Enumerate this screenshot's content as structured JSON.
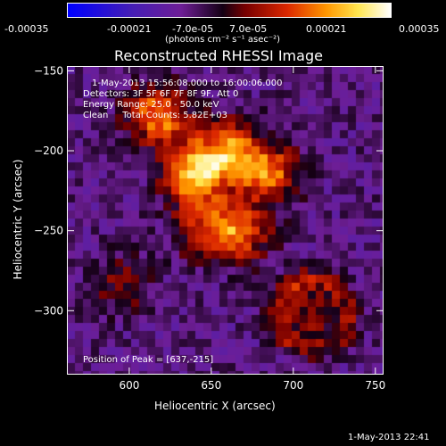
{
  "colorbar": {
    "ticks": [
      "-0.00035",
      "-0.00021",
      "-7.0e-05",
      "7.0e-05",
      "0.00021",
      "0.00035"
    ],
    "unit_label": "(photons cm⁻² s⁻¹ asec⁻²)"
  },
  "chart_data": {
    "type": "heatmap",
    "title": "Reconstructed RHESSI Image",
    "xlabel": "Heliocentric X (arcsec)",
    "ylabel": "Heliocentric Y (arcsec)",
    "xlim": [
      562,
      755
    ],
    "ylim": [
      -340,
      -147
    ],
    "x_ticks": [
      600,
      650,
      700,
      750
    ],
    "y_ticks": [
      -150,
      -200,
      -250,
      -300
    ],
    "colormap": "RHESSI temperature (blue-purple-red-yellow-white)",
    "zrange": [
      -0.00035,
      0.00035
    ],
    "annotations": [
      "1-May-2013 15:56:08.000 to 16:00:06.000",
      "Detectors: 3F 5F 6F 7F 8F 9F, Att 0",
      "Energy Range: 25.0 - 50.0 keV",
      "Clean     Total Counts: 5.82E+03"
    ],
    "peak_label": "Position of Peak = [637,-215]",
    "peak": [
      637,
      -215
    ],
    "sources": [
      {
        "x": 618,
        "y": -178,
        "amplitude": 0.0003
      },
      {
        "x": 640,
        "y": -215,
        "amplitude": 0.00033
      },
      {
        "x": 660,
        "y": -200,
        "amplitude": 0.00027
      },
      {
        "x": 685,
        "y": -213,
        "amplitude": 0.00026
      },
      {
        "x": 668,
        "y": -250,
        "amplitude": 0.00025
      },
      {
        "x": 645,
        "y": -250,
        "amplitude": 0.00018
      },
      {
        "x": 708,
        "y": -300,
        "amplitude": 0.00014
      },
      {
        "x": 596,
        "y": -283,
        "amplitude": 0.00012
      }
    ]
  },
  "footer": {
    "timestamp": "1-May-2013 22:41"
  }
}
